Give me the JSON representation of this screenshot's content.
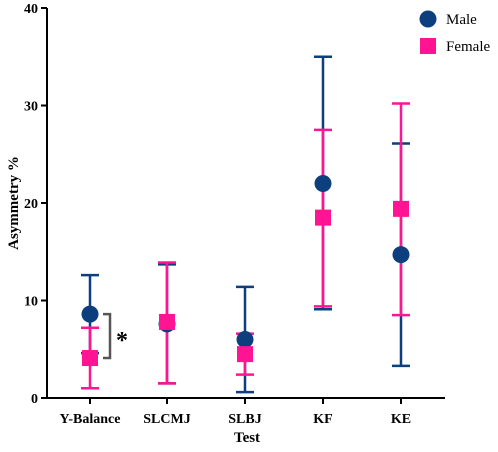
{
  "chart_data": {
    "type": "scatter",
    "xlabel": "Test",
    "ylabel": "Asymmetry %",
    "ylim": [
      0,
      40
    ],
    "yticks": [
      0,
      10,
      20,
      30,
      40
    ],
    "grid": false,
    "legend_position": "top-right",
    "categories": [
      "Y-Balance",
      "SLCMJ",
      "SLBJ",
      "KF",
      "KE"
    ],
    "series": [
      {
        "name": "Male",
        "marker": "circle",
        "color": "#0d3f7f",
        "values": [
          8.6,
          7.6,
          6.0,
          22.0,
          14.7
        ],
        "error_low": [
          4.6,
          1.5,
          0.6,
          9.1,
          3.3
        ],
        "error_high": [
          12.6,
          13.7,
          11.4,
          35.0,
          26.1
        ]
      },
      {
        "name": "Female",
        "marker": "square",
        "color": "#ff1493",
        "values": [
          4.1,
          7.8,
          4.5,
          18.5,
          19.4
        ],
        "error_low": [
          1.0,
          1.5,
          2.4,
          9.4,
          8.5
        ],
        "error_high": [
          7.2,
          13.9,
          6.6,
          27.5,
          30.2
        ]
      }
    ],
    "annotations": [
      {
        "text": "*",
        "category": "Y-Balance",
        "y_range": [
          4.1,
          8.6
        ]
      }
    ]
  }
}
